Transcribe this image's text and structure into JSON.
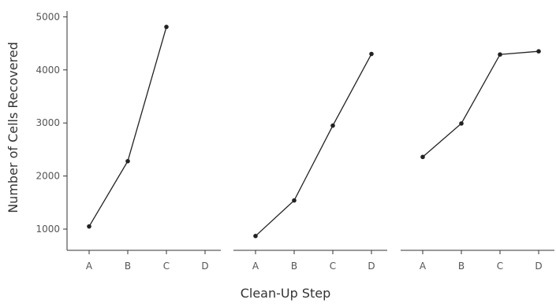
{
  "chart_data": {
    "type": "line",
    "xlabel": "Clean-Up Step",
    "ylabel": "Number of Cells Recovered",
    "ylim": [
      600,
      5050
    ],
    "yticks": [
      "1000",
      "2000",
      "3000",
      "4000",
      "5000"
    ],
    "categories": [
      "A",
      "B",
      "C",
      "D"
    ],
    "grid": false,
    "line_color": "#222222",
    "panels": [
      {
        "series": [
          {
            "values": [
              1050,
              2280,
              4810,
              null
            ]
          }
        ]
      },
      {
        "series": [
          {
            "values": [
              870,
              1540,
              2950,
              4300
            ]
          }
        ]
      },
      {
        "series": [
          {
            "values": [
              2360,
              2990,
              4290,
              4350
            ]
          }
        ]
      }
    ]
  }
}
